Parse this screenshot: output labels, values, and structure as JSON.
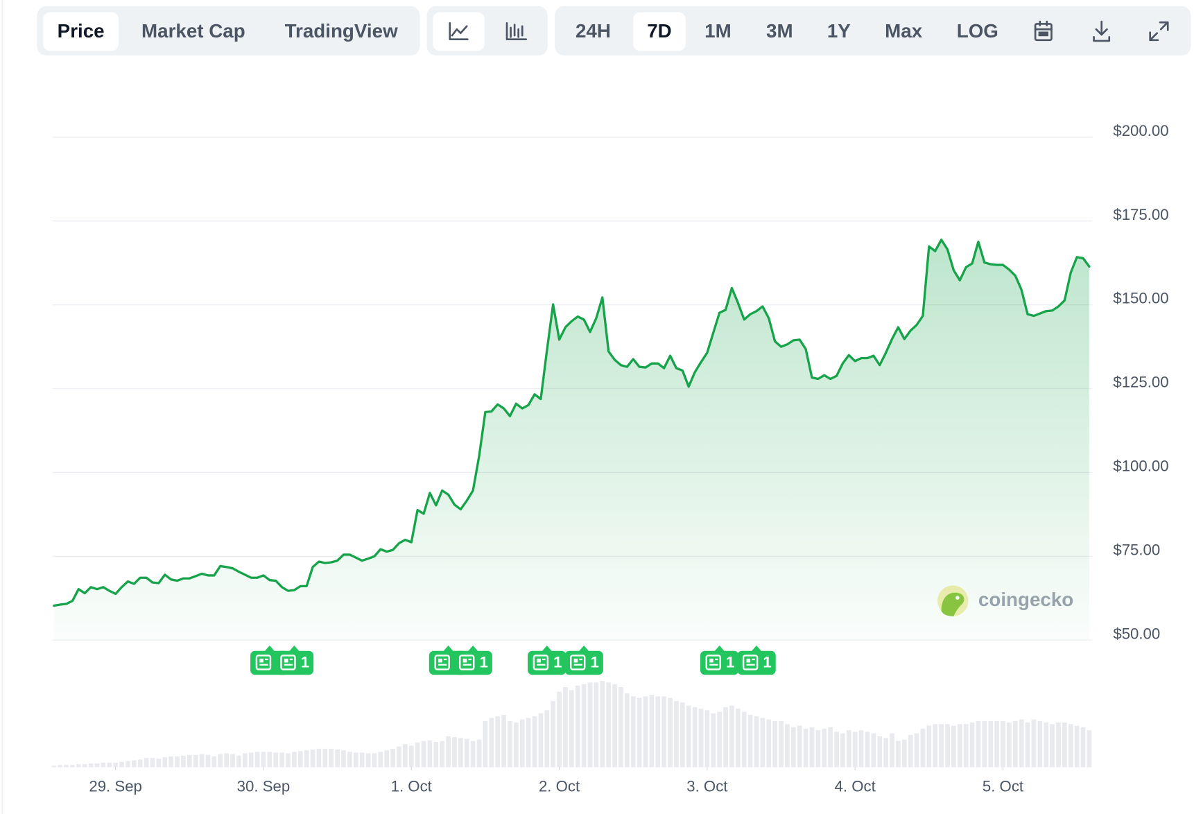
{
  "toolbar": {
    "tabs": [
      "Price",
      "Market Cap",
      "TradingView"
    ],
    "ranges": [
      "24H",
      "7D",
      "1M",
      "3M",
      "1Y",
      "Max",
      "LOG"
    ],
    "brand": "coingecko"
  },
  "chart_data": {
    "type": "line",
    "area": true,
    "grid": true,
    "xlim": [
      -10.25,
      158.5
    ],
    "ylim": [
      50,
      200
    ],
    "xticks": [
      {
        "value": 0,
        "label": "29. Sep"
      },
      {
        "value": 24,
        "label": "30. Sep"
      },
      {
        "value": 48,
        "label": "1. Oct"
      },
      {
        "value": 72,
        "label": "2. Oct"
      },
      {
        "value": 96,
        "label": "3. Oct"
      },
      {
        "value": 120,
        "label": "4. Oct"
      },
      {
        "value": 144,
        "label": "5. Oct"
      }
    ],
    "yticks": [
      {
        "value": 50,
        "label": "$50.00"
      },
      {
        "value": 75,
        "label": "$75.00"
      },
      {
        "value": 100,
        "label": "$100.00"
      },
      {
        "value": 125,
        "label": "$125.00"
      },
      {
        "value": 150,
        "label": "$150.00"
      },
      {
        "value": 175,
        "label": "$175.00"
      },
      {
        "value": 200,
        "label": "$200.00"
      }
    ],
    "x": [
      -10,
      -9,
      -8,
      -7,
      -6,
      -5,
      -4,
      -3,
      -2,
      -1,
      0,
      1,
      2,
      3,
      4,
      5,
      6,
      7,
      8,
      9,
      10,
      11,
      12,
      13,
      14,
      15,
      16,
      17,
      18,
      19,
      20,
      21,
      22,
      23,
      24,
      25,
      26,
      27,
      28,
      29,
      30,
      31,
      32,
      33,
      34,
      35,
      36,
      37,
      38,
      39,
      40,
      41,
      42,
      43,
      44,
      45,
      46,
      47,
      48,
      49,
      50,
      51,
      52,
      53,
      54,
      55,
      56,
      57,
      58,
      59,
      60,
      61,
      62,
      63,
      64,
      65,
      66,
      67,
      68,
      69,
      70,
      71,
      72,
      73,
      74,
      75,
      76,
      77,
      78,
      79,
      80,
      81,
      82,
      83,
      84,
      85,
      86,
      87,
      88,
      89,
      90,
      91,
      92,
      93,
      94,
      95,
      96,
      97,
      98,
      99,
      100,
      101,
      102,
      103,
      104,
      105,
      106,
      107,
      108,
      109,
      110,
      111,
      112,
      113,
      114,
      115,
      116,
      117,
      118,
      119,
      120,
      121,
      122,
      123,
      124,
      125,
      126,
      127,
      128,
      129,
      130,
      131,
      132,
      133,
      134,
      135,
      136,
      137,
      138,
      139,
      140,
      141,
      142,
      143,
      144,
      145,
      146,
      147,
      148,
      149,
      150,
      151,
      152,
      153,
      154,
      155,
      156,
      157,
      158
    ],
    "series": [
      {
        "color": "#16a34a",
        "values": [
          60.3,
          60.6,
          60.8,
          61.7,
          65.2,
          64.0,
          65.8,
          65.2,
          65.8,
          64.7,
          63.8,
          65.8,
          67.5,
          66.8,
          68.6,
          68.6,
          67.2,
          67.0,
          69.5,
          68.1,
          67.7,
          68.4,
          68.4,
          69.1,
          69.8,
          69.3,
          69.3,
          72.1,
          71.8,
          71.4,
          70.4,
          69.5,
          68.6,
          68.6,
          69.3,
          67.9,
          67.7,
          65.8,
          64.7,
          64.9,
          66.1,
          66.1,
          71.8,
          73.4,
          73.0,
          73.2,
          73.7,
          75.5,
          75.5,
          74.6,
          73.7,
          74.3,
          75.0,
          77.1,
          76.4,
          76.9,
          78.9,
          79.9,
          79.2,
          88.8,
          87.7,
          93.9,
          90.2,
          94.6,
          93.4,
          90.4,
          89.0,
          91.6,
          94.6,
          104.9,
          118.0,
          118.2,
          120.3,
          119.1,
          116.8,
          120.5,
          119.1,
          120.1,
          123.3,
          121.9,
          136.4,
          150.1,
          139.6,
          143.3,
          145.1,
          146.5,
          145.6,
          141.9,
          146.0,
          152.2,
          136.1,
          133.6,
          132.0,
          131.5,
          133.8,
          131.5,
          131.3,
          132.5,
          132.5,
          131.1,
          134.8,
          131.1,
          130.4,
          125.6,
          129.9,
          132.9,
          135.7,
          141.7,
          147.6,
          148.5,
          155.0,
          150.6,
          145.6,
          147.2,
          148.1,
          149.5,
          146.0,
          139.1,
          137.5,
          138.2,
          139.4,
          139.6,
          136.8,
          128.3,
          127.9,
          129.0,
          127.9,
          128.8,
          132.5,
          135.0,
          133.2,
          134.1,
          134.1,
          134.8,
          132.0,
          135.7,
          139.8,
          143.3,
          139.8,
          142.3,
          144.0,
          146.7,
          167.4,
          166.0,
          169.4,
          166.5,
          160.3,
          157.3,
          161.2,
          162.3,
          168.8,
          162.6,
          162.1,
          161.9,
          161.9,
          160.5,
          158.7,
          154.5,
          147.2,
          146.7,
          147.4,
          148.1,
          148.3,
          149.5,
          151.3,
          159.6,
          164.2,
          163.9,
          161.4
        ]
      }
    ],
    "volume": {
      "color": "#e8eaee",
      "values": [
        2,
        3,
        3,
        3,
        4,
        4,
        5,
        5,
        6,
        6,
        6,
        7,
        8,
        9,
        10,
        12,
        12,
        11,
        13,
        14,
        14,
        15,
        16,
        16,
        17,
        16,
        14,
        17,
        18,
        17,
        15,
        18,
        19,
        20,
        20,
        20,
        19,
        19,
        18,
        20,
        21,
        22,
        23,
        24,
        24,
        24,
        23,
        22,
        20,
        19,
        19,
        18,
        18,
        20,
        22,
        24,
        27,
        30,
        28,
        32,
        34,
        35,
        33,
        34,
        40,
        39,
        38,
        37,
        34,
        36,
        60,
        64,
        66,
        68,
        60,
        58,
        62,
        64,
        66,
        70,
        74,
        86,
        98,
        104,
        100,
        106,
        108,
        110,
        110,
        112,
        110,
        108,
        104,
        96,
        92,
        90,
        92,
        94,
        92,
        92,
        90,
        86,
        84,
        80,
        78,
        76,
        74,
        70,
        72,
        78,
        80,
        76,
        72,
        68,
        66,
        64,
        62,
        60,
        60,
        56,
        52,
        54,
        50,
        52,
        48,
        50,
        52,
        46,
        44,
        48,
        46,
        48,
        46,
        44,
        40,
        38,
        44,
        34,
        36,
        42,
        44,
        50,
        54,
        56,
        56,
        56,
        54,
        56,
        56,
        58,
        60,
        60,
        60,
        60,
        60,
        58,
        60,
        62,
        58,
        62,
        60,
        58,
        56,
        58,
        58,
        56,
        54,
        52,
        48
      ]
    },
    "news_markers": {
      "color": "#22c55e",
      "items": [
        {
          "x": 25,
          "label": "1"
        },
        {
          "x": 29,
          "label": "1"
        },
        {
          "x": 54,
          "label": "1"
        },
        {
          "x": 58,
          "label": "1"
        },
        {
          "x": 70,
          "label": "1"
        },
        {
          "x": 76,
          "label": "1"
        },
        {
          "x": 98,
          "label": "1"
        },
        {
          "x": 104,
          "label": "1"
        }
      ]
    }
  }
}
